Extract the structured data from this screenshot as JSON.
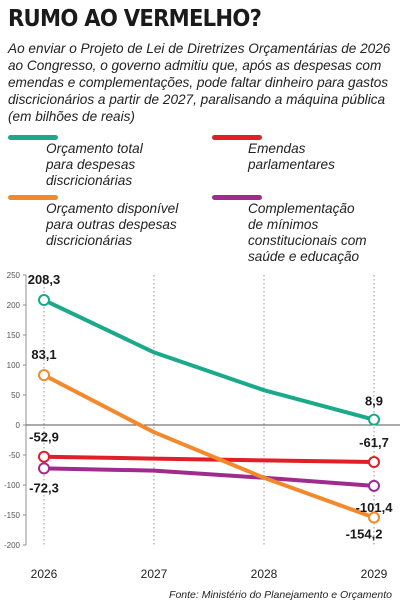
{
  "title": "RUMO AO VERMELHO?",
  "subtitle": "Ao enviar o Projeto de Lei de Diretrizes Orçamentárias de 2026 ao Congresso, o governo admitiu que, após as despesas com emendas e complementações, pode faltar dinheiro para gastos discricionários a partir de 2027, paralisando a máquina pública (em bilhões de reais)",
  "source": "Fonte: Ministério do Planejamento e Orçamento",
  "colors": {
    "green": "#1aaa8a",
    "red": "#e01f26",
    "orange": "#f4892c",
    "purple": "#a02b8f"
  },
  "legend": [
    {
      "label": "Orçamento total\npara despesas\ndiscricionárias",
      "color": "#1aaa8a"
    },
    {
      "label": "Emendas\nparlamentares",
      "color": "#e01f26"
    },
    {
      "label": "Orçamento disponível\npara outras despesas\ndiscricionárias",
      "color": "#f4892c"
    },
    {
      "label": "Complementação\nde mínimos\nconstitucionais com\nsaúde e educação",
      "color": "#a02b8f"
    }
  ],
  "chart_data": {
    "type": "line",
    "x": [
      "2026",
      "2027",
      "2028",
      "2029"
    ],
    "ylim": [
      -200,
      250
    ],
    "yticks": [
      250,
      200,
      150,
      100,
      50,
      0,
      -50,
      -100,
      -150,
      -200
    ],
    "grid": false,
    "series": [
      {
        "name": "Orçamento total para despesas discricionárias",
        "color": "#1aaa8a",
        "values": [
          208.3,
          121,
          58,
          8.9
        ],
        "labels": [
          "208,3",
          null,
          null,
          "8,9"
        ]
      },
      {
        "name": "Emendas parlamentares",
        "color": "#e01f26",
        "values": [
          -52.9,
          -56,
          -59,
          -61.7
        ],
        "labels": [
          "-52,9",
          null,
          null,
          "-61,7"
        ]
      },
      {
        "name": "Orçamento disponível para outras despesas discricionárias",
        "color": "#f4892c",
        "values": [
          83.1,
          -12,
          -88,
          -154.2
        ],
        "labels": [
          "83,1",
          null,
          null,
          "-154,2"
        ]
      },
      {
        "name": "Complementação de mínimos constitucionais com saúde e educação",
        "color": "#a02b8f",
        "values": [
          -72.3,
          -76,
          -88,
          -101.4
        ],
        "labels": [
          "-72,3",
          null,
          null,
          "-101,4"
        ]
      }
    ]
  }
}
